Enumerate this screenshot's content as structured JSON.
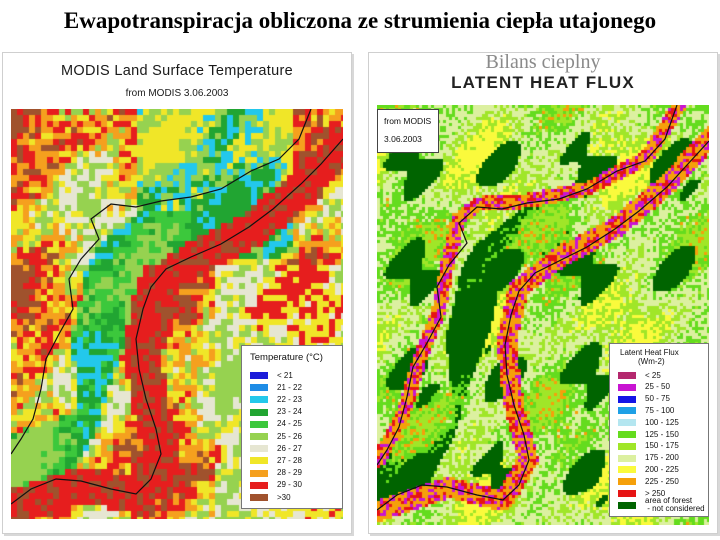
{
  "slide": {
    "title": "Ewapotranspiracja obliczona ze strumienia ciepła utajonego"
  },
  "lst_panel": {
    "title": "MODIS  Land Surface Temperature",
    "subtitle": "from MODIS    3.06.2003",
    "legend": {
      "title": "Temperature  (°C)",
      "classes": [
        {
          "label": "< 21",
          "color": "#1b1bd9"
        },
        {
          "label": "21 - 22",
          "color": "#1e8ce6"
        },
        {
          "label": "22 - 23",
          "color": "#23c8eb"
        },
        {
          "label": "23 - 24",
          "color": "#21a532"
        },
        {
          "label": "24 - 25",
          "color": "#3cc83c"
        },
        {
          "label": "25 - 26",
          "color": "#96d250"
        },
        {
          "label": "26 - 27",
          "color": "#e6e6d2"
        },
        {
          "label": "27 - 28",
          "color": "#f0e628"
        },
        {
          "label": "28 - 29",
          "color": "#f5a01e"
        },
        {
          "label": "29 - 30",
          "color": "#e61e1e"
        },
        {
          "label": ">30",
          "color": "#a0522d"
        }
      ]
    }
  },
  "lhf_panel": {
    "overlay_text": "Bilans cieplny",
    "title": "LATENT  HEAT  FLUX",
    "info_source": "from MODIS",
    "info_date": "3.06.2003",
    "legend": {
      "title_line1": "Latent Heat Flux",
      "title_line2": "(Wm-2)",
      "classes": [
        {
          "label": "< 25",
          "color": "#b4286e"
        },
        {
          "label": "25 - 50",
          "color": "#c814d2"
        },
        {
          "label": "50 - 75",
          "color": "#1414e6"
        },
        {
          "label": "75 - 100",
          "color": "#1ea0e6"
        },
        {
          "label": "100 - 125",
          "color": "#b4e6f0"
        },
        {
          "label": "125 - 150",
          "color": "#64dc1e"
        },
        {
          "label": "150 - 175",
          "color": "#a0e628"
        },
        {
          "label": "175 - 200",
          "color": "#dcf0a0"
        },
        {
          "label": "200 - 225",
          "color": "#fafa3c"
        },
        {
          "label": "225 - 250",
          "color": "#f5a00a"
        },
        {
          "label": "> 250",
          "color": "#e61414"
        },
        {
          "label": "area of forest\n - not considered",
          "color": "#006400"
        }
      ]
    }
  }
}
